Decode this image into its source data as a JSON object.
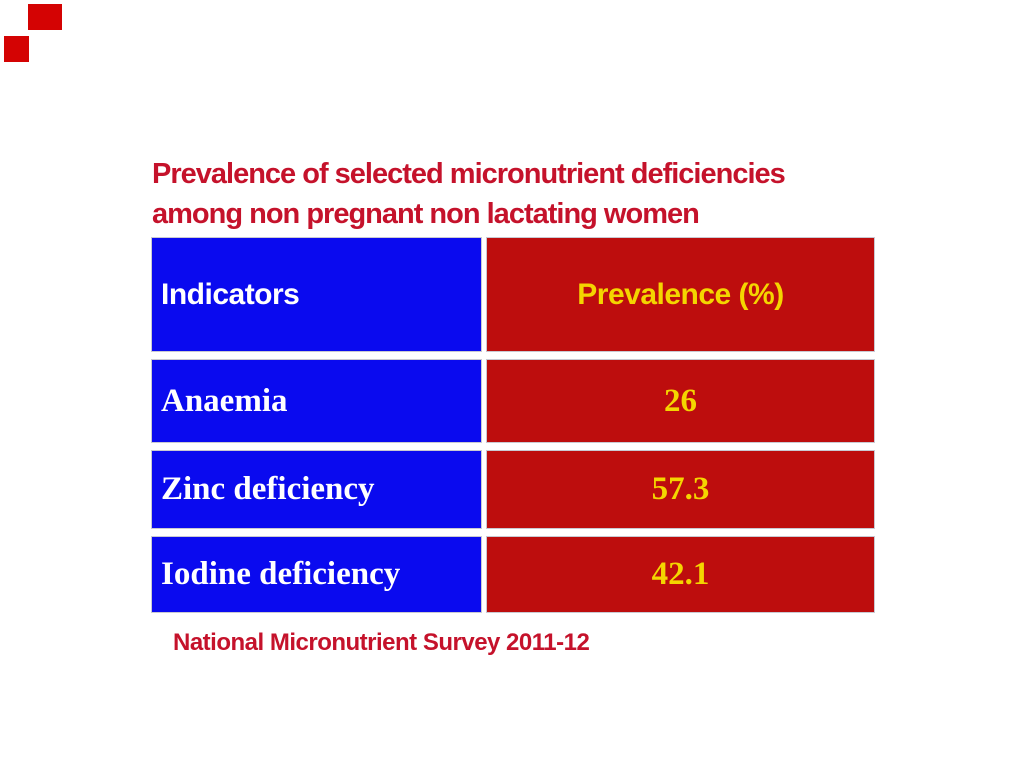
{
  "slide": {
    "title_line1": "Prevalence of selected micronutrient deficiencies",
    "title_line2": "among non pregnant non lactating women",
    "source_note": "National Micronutrient Survey 2011-12"
  },
  "table": {
    "columns": [
      {
        "label": "Indicators"
      },
      {
        "label": "Prevalence (%)"
      }
    ],
    "rows": [
      {
        "indicator": "Anaemia",
        "prevalence": "26"
      },
      {
        "indicator": "Zinc deficiency",
        "prevalence": "57.3"
      },
      {
        "indicator": "Iodine deficiency",
        "prevalence": "42.1"
      }
    ]
  },
  "chart_data": {
    "type": "table",
    "title": "Prevalence of selected micronutrient deficiencies among non pregnant non lactating women",
    "categories": [
      "Anaemia",
      "Zinc deficiency",
      "Iodine deficiency"
    ],
    "values": [
      26,
      57.3,
      42.1
    ],
    "value_label": "Prevalence (%)",
    "source": "National Micronutrient Survey 2011-12"
  },
  "colors": {
    "title_red": "#c5122b",
    "cell_red": "#bd0d0d",
    "cell_blue": "#0a0aef",
    "value_yellow": "#f4d500",
    "decor_red": "#d40303"
  }
}
